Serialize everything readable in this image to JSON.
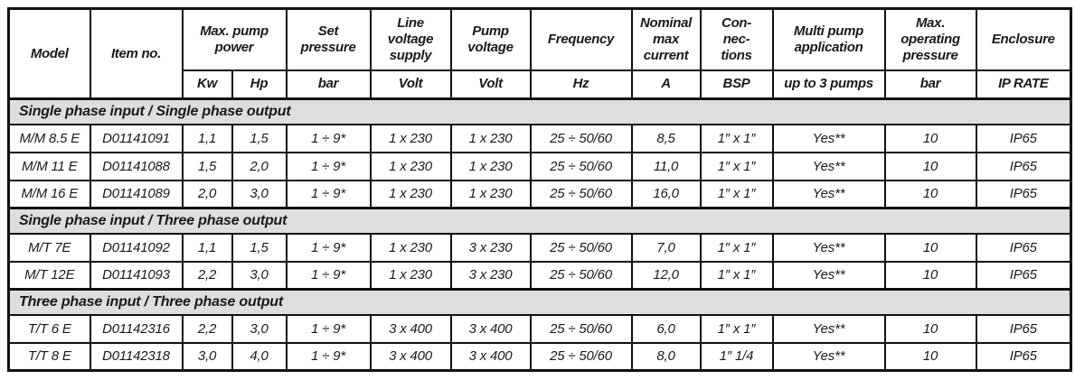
{
  "colors": {
    "section_band": "#dedede",
    "border": "#111111",
    "text": "#1a1a1a",
    "page_background": "#ffffff"
  },
  "table": {
    "column_count": 13,
    "header_groups": [
      {
        "label": "Model"
      },
      {
        "label": "Item no."
      },
      {
        "label": "Max. pump\npower",
        "units": [
          "Kw",
          "Hp"
        ]
      },
      {
        "label": "Set\npressure",
        "units": [
          "bar"
        ]
      },
      {
        "label": "Line\nvoltage\nsupply",
        "units": [
          "Volt"
        ]
      },
      {
        "label": "Pump\nvoltage",
        "units": [
          "Volt"
        ]
      },
      {
        "label": "Frequency",
        "units": [
          "Hz"
        ]
      },
      {
        "label": "Nominal\nmax\ncurrent",
        "units": [
          "A"
        ]
      },
      {
        "label": "Con-\nnec-\ntions",
        "units": [
          "BSP"
        ]
      },
      {
        "label": "Multi pump\napplication",
        "units": [
          "up to 3 pumps"
        ]
      },
      {
        "label": "Max.\noperating\npressure",
        "units": [
          "bar"
        ]
      },
      {
        "label": "Enclosure",
        "units": [
          "IP RATE"
        ]
      }
    ],
    "sections": [
      {
        "title": "Single phase input / Single phase output",
        "rows": [
          [
            "M/M 8.5 E",
            "D01141091",
            "1,1",
            "1,5",
            "1 ÷ 9*",
            "1 x 230",
            "1 x 230",
            "25 ÷ 50/60",
            "8,5",
            "1″ x 1″",
            "Yes**",
            "10",
            "IP65"
          ],
          [
            "M/M 11 E",
            "D01141088",
            "1,5",
            "2,0",
            "1 ÷ 9*",
            "1 x 230",
            "1 x 230",
            "25 ÷ 50/60",
            "11,0",
            "1″ x 1″",
            "Yes**",
            "10",
            "IP65"
          ],
          [
            "M/M 16 E",
            "D01141089",
            "2,0",
            "3,0",
            "1 ÷ 9*",
            "1 x 230",
            "1 x 230",
            "25 ÷ 50/60",
            "16,0",
            "1″ x 1″",
            "Yes**",
            "10",
            "IP65"
          ]
        ]
      },
      {
        "title": "Single phase input / Three phase output",
        "rows": [
          [
            "M/T 7E",
            "D01141092",
            "1,1",
            "1,5",
            "1 ÷ 9*",
            "1 x 230",
            "3 x 230",
            "25 ÷ 50/60",
            "7,0",
            "1″ x 1″",
            "Yes**",
            "10",
            "IP65"
          ],
          [
            "M/T 12E",
            "D01141093",
            "2,2",
            "3,0",
            "1 ÷ 9*",
            "1 x 230",
            "3 x 230",
            "25 ÷ 50/60",
            "12,0",
            "1″ x 1″",
            "Yes**",
            "10",
            "IP65"
          ]
        ]
      },
      {
        "title": "Three phase input / Three phase output",
        "rows": [
          [
            "T/T 6 E",
            "D01142316",
            "2,2",
            "3,0",
            "1 ÷ 9*",
            "3 x 400",
            "3 x 400",
            "25 ÷ 50/60",
            "6,0",
            "1″ x 1″",
            "Yes**",
            "10",
            "IP65"
          ],
          [
            "T/T 8 E",
            "D01142318",
            "3,0",
            "4,0",
            "1 ÷ 9*",
            "3 x 400",
            "3 x 400",
            "25 ÷ 50/60",
            "8,0",
            "1″ 1/4",
            "Yes**",
            "10",
            "IP65"
          ]
        ]
      }
    ]
  }
}
